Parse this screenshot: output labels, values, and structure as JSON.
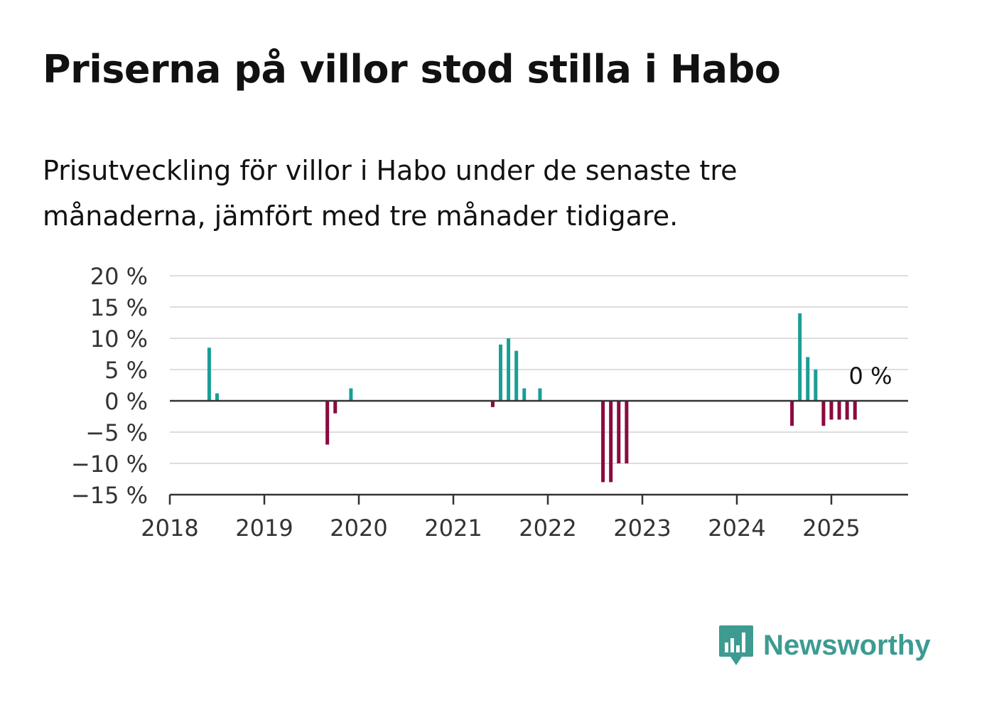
{
  "header": {
    "title": "Priserna på villor stod stilla i Habo",
    "subtitle": "Prisutveckling för villor i Habo under de senaste tre månaderna, jämfört med tre månader tidigare."
  },
  "brand": {
    "name": "Newsworthy",
    "icon": "bar-chart-speech-bubble-icon",
    "color": "#3d9b91"
  },
  "chart_data": {
    "type": "bar",
    "title": "",
    "xlabel": "",
    "ylabel": "",
    "x_ticks": [
      "2018",
      "2019",
      "2020",
      "2021",
      "2022",
      "2023",
      "2024",
      "2025"
    ],
    "y_ticks": [
      "20 %",
      "15 %",
      "10 %",
      "5 %",
      "0 %",
      "−5 %",
      "−10 %",
      "−15 %"
    ],
    "ylim": [
      -15,
      20
    ],
    "xlim": [
      "2018-01",
      "2025-10"
    ],
    "grid": true,
    "positive_color": "#1a9e96",
    "negative_color": "#8b0a3f",
    "annotation": "0 %",
    "series": [
      {
        "values": [
          {
            "x": "2018-06",
            "y": 8.5
          },
          {
            "x": "2018-07",
            "y": 1.2
          },
          {
            "x": "2019-09",
            "y": -7
          },
          {
            "x": "2019-10",
            "y": -2
          },
          {
            "x": "2019-12",
            "y": 2
          },
          {
            "x": "2021-06",
            "y": -1
          },
          {
            "x": "2021-07",
            "y": 9
          },
          {
            "x": "2021-08",
            "y": 10
          },
          {
            "x": "2021-09",
            "y": 8
          },
          {
            "x": "2021-10",
            "y": 2
          },
          {
            "x": "2021-12",
            "y": 2
          },
          {
            "x": "2022-08",
            "y": -13
          },
          {
            "x": "2022-09",
            "y": -13
          },
          {
            "x": "2022-10",
            "y": -10
          },
          {
            "x": "2022-11",
            "y": -10
          },
          {
            "x": "2024-08",
            "y": -4
          },
          {
            "x": "2024-09",
            "y": 14
          },
          {
            "x": "2024-10",
            "y": 7
          },
          {
            "x": "2024-11",
            "y": 5
          },
          {
            "x": "2024-12",
            "y": -4
          },
          {
            "x": "2025-01",
            "y": -3
          },
          {
            "x": "2025-02",
            "y": -3
          },
          {
            "x": "2025-03",
            "y": -3
          },
          {
            "x": "2025-04",
            "y": -3
          },
          {
            "x": "2025-05",
            "y": 0
          }
        ]
      }
    ]
  }
}
